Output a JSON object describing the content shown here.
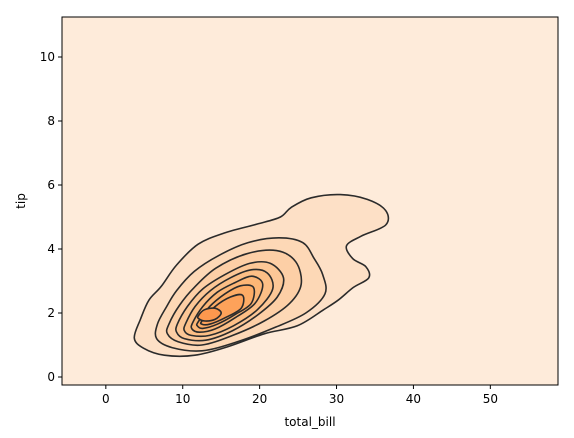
{
  "chart_data": {
    "type": "kde_contour",
    "title": "",
    "xlabel": "total_bill",
    "ylabel": "tip",
    "xlim": [
      -5.7,
      58.8
    ],
    "ylim": [
      -0.25,
      11.25
    ],
    "xticks": [
      0,
      10,
      20,
      30,
      40,
      50
    ],
    "yticks": [
      0,
      2,
      4,
      6,
      8,
      10
    ],
    "grid": false,
    "legend": "none",
    "density_peak": {
      "total_bill": 13.5,
      "tip": 2.0
    },
    "contours": [
      {
        "level": 1,
        "fill": "#fde0c6",
        "points": [
          [
            3.7,
            1.22
          ],
          [
            4.5,
            1.8
          ],
          [
            5.6,
            2.4
          ],
          [
            7.2,
            2.83
          ],
          [
            9.2,
            3.5
          ],
          [
            12.0,
            4.15
          ],
          [
            15.4,
            4.5
          ],
          [
            19.7,
            4.78
          ],
          [
            22.7,
            5.0
          ],
          [
            24.1,
            5.3
          ],
          [
            26.7,
            5.6
          ],
          [
            30.5,
            5.7
          ],
          [
            34.0,
            5.55
          ],
          [
            36.4,
            5.2
          ],
          [
            36.4,
            4.75
          ],
          [
            33.2,
            4.4
          ],
          [
            31.3,
            4.1
          ],
          [
            32.1,
            3.7
          ],
          [
            33.8,
            3.45
          ],
          [
            34.2,
            3.1
          ],
          [
            32.2,
            2.8
          ],
          [
            30.2,
            2.4
          ],
          [
            28.3,
            2.1
          ],
          [
            24.9,
            1.6
          ],
          [
            20.6,
            1.35
          ],
          [
            15.9,
            0.95
          ],
          [
            11.6,
            0.68
          ],
          [
            7.6,
            0.68
          ],
          [
            4.9,
            0.9
          ]
        ]
      },
      {
        "level": 2,
        "fill": "#fdd8b6",
        "points": [
          [
            6.7,
            1.65
          ],
          [
            7.9,
            2.2
          ],
          [
            9.2,
            2.7
          ],
          [
            11.5,
            3.3
          ],
          [
            14.7,
            3.8
          ],
          [
            18.5,
            4.2
          ],
          [
            22.5,
            4.35
          ],
          [
            25.6,
            4.2
          ],
          [
            27.1,
            3.7
          ],
          [
            28.2,
            3.2
          ],
          [
            28.5,
            2.6
          ],
          [
            26.0,
            2.0
          ],
          [
            22.0,
            1.55
          ],
          [
            17.1,
            1.1
          ],
          [
            12.5,
            0.82
          ],
          [
            8.6,
            0.92
          ],
          [
            6.6,
            1.2
          ]
        ]
      },
      {
        "level": 3,
        "fill": "#fdcfa6",
        "points": [
          [
            8.2,
            1.65
          ],
          [
            9.6,
            2.25
          ],
          [
            11.5,
            2.8
          ],
          [
            14.3,
            3.4
          ],
          [
            18.3,
            3.85
          ],
          [
            22.2,
            3.95
          ],
          [
            24.7,
            3.6
          ],
          [
            25.4,
            2.9
          ],
          [
            23.9,
            2.3
          ],
          [
            20.6,
            1.75
          ],
          [
            16.5,
            1.3
          ],
          [
            12.5,
            1.0
          ],
          [
            9.4,
            1.1
          ],
          [
            8.0,
            1.35
          ]
        ]
      },
      {
        "level": 4,
        "fill": "#fcc796",
        "points": [
          [
            9.3,
            1.65
          ],
          [
            10.6,
            2.2
          ],
          [
            12.6,
            2.75
          ],
          [
            15.5,
            3.2
          ],
          [
            18.7,
            3.55
          ],
          [
            21.4,
            3.55
          ],
          [
            23.1,
            3.1
          ],
          [
            22.3,
            2.5
          ],
          [
            19.8,
            1.95
          ],
          [
            16.5,
            1.45
          ],
          [
            13.0,
            1.15
          ],
          [
            10.2,
            1.2
          ],
          [
            9.2,
            1.4
          ]
        ]
      },
      {
        "level": 5,
        "fill": "#fcbf86",
        "points": [
          [
            10.4,
            1.68
          ],
          [
            11.6,
            2.2
          ],
          [
            13.6,
            2.7
          ],
          [
            16.2,
            3.1
          ],
          [
            18.9,
            3.35
          ],
          [
            21.0,
            3.25
          ],
          [
            21.7,
            2.75
          ],
          [
            19.7,
            2.1
          ],
          [
            16.6,
            1.6
          ],
          [
            13.5,
            1.3
          ],
          [
            11.1,
            1.3
          ],
          [
            10.2,
            1.45
          ]
        ]
      },
      {
        "level": 6,
        "fill": "#fcb676",
        "points": [
          [
            11.3,
            1.7
          ],
          [
            12.6,
            2.2
          ],
          [
            14.5,
            2.65
          ],
          [
            16.8,
            2.95
          ],
          [
            19.0,
            3.15
          ],
          [
            20.4,
            2.9
          ],
          [
            19.4,
            2.3
          ],
          [
            16.8,
            1.85
          ],
          [
            14.2,
            1.5
          ],
          [
            12.2,
            1.4
          ],
          [
            11.2,
            1.5
          ]
        ]
      },
      {
        "level": 7,
        "fill": "#fdac66",
        "points": [
          [
            12.0,
            1.72
          ],
          [
            13.5,
            2.2
          ],
          [
            15.5,
            2.6
          ],
          [
            17.5,
            2.85
          ],
          [
            19.2,
            2.8
          ],
          [
            18.9,
            2.3
          ],
          [
            16.8,
            1.95
          ],
          [
            14.5,
            1.65
          ],
          [
            12.6,
            1.52
          ],
          [
            11.9,
            1.6
          ]
        ]
      },
      {
        "level": 8,
        "fill": "#fda25a",
        "points": [
          [
            12.5,
            1.75
          ],
          [
            14.2,
            2.2
          ],
          [
            16.2,
            2.5
          ],
          [
            17.8,
            2.55
          ],
          [
            17.6,
            2.15
          ],
          [
            15.5,
            1.85
          ],
          [
            13.5,
            1.65
          ],
          [
            12.5,
            1.65
          ]
        ]
      },
      {
        "level": 9,
        "fill": "#fd984e",
        "points": [
          [
            12.0,
            1.9
          ],
          [
            12.8,
            2.1
          ],
          [
            14.2,
            2.15
          ],
          [
            15.0,
            2.0
          ],
          [
            14.2,
            1.8
          ],
          [
            12.9,
            1.75
          ],
          [
            12.1,
            1.82
          ]
        ]
      }
    ]
  }
}
